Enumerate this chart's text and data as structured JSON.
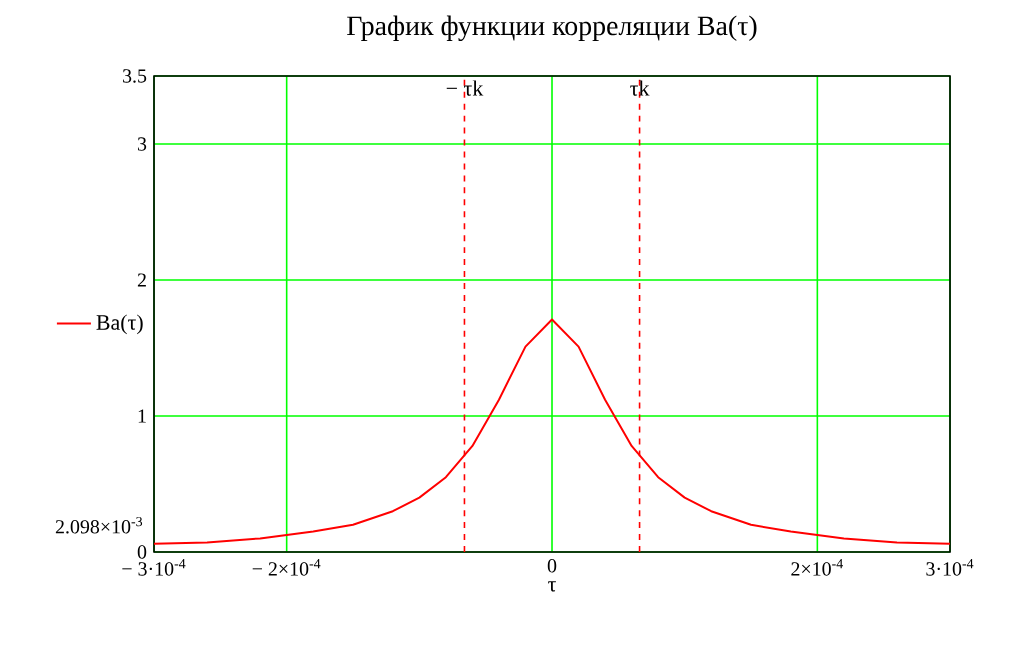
{
  "chart_data": {
    "type": "line",
    "title": "График функции корреляции Ba(τ)",
    "xlabel": "τ",
    "x": [
      -0.0003,
      -0.00026,
      -0.00022,
      -0.00018,
      -0.00015,
      -0.00012,
      -0.0001,
      -8e-05,
      -6e-05,
      -4e-05,
      -2e-05,
      0,
      2e-05,
      4e-05,
      6e-05,
      8e-05,
      0.0001,
      0.00012,
      0.00015,
      0.00018,
      0.00022,
      0.00026,
      0.0003
    ],
    "series": [
      {
        "name": "Ba(τ)",
        "color": "#ff0000",
        "values": [
          0.06,
          0.07,
          0.1,
          0.15,
          0.2,
          0.3,
          0.4,
          0.55,
          0.78,
          1.12,
          1.51,
          1.71,
          1.51,
          1.12,
          0.78,
          0.55,
          0.4,
          0.3,
          0.2,
          0.15,
          0.1,
          0.07,
          0.06
        ]
      }
    ],
    "xlim": [
      -0.0003,
      0.0003
    ],
    "xticks": [
      {
        "value": -0.0003,
        "label": "− 3·10$^{-4}$"
      },
      {
        "value": -0.0002,
        "label": "− 2×10$^{-4}$"
      },
      0,
      {
        "value": 0.0002,
        "label": "2×10$^{-4}$"
      },
      {
        "value": 0.0003,
        "label": "3·10$^{-4}$"
      }
    ],
    "ylim": [
      0,
      3.5
    ],
    "yticks": [
      0,
      1,
      2,
      3,
      3.5
    ],
    "annotations": [
      "2.098×10$^{-3}$"
    ],
    "ref_lines": [
      {
        "axis": "x",
        "value": -6.6e-05,
        "label": "− τk",
        "color": "#ff0000",
        "line_style": "dashed"
      },
      {
        "axis": "x",
        "value": 6.6e-05,
        "label": "τk",
        "color": "#ff0000",
        "line_style": "dashed"
      }
    ],
    "grid": true,
    "legend": "left",
    "marker": "none",
    "line_style": "solid"
  }
}
